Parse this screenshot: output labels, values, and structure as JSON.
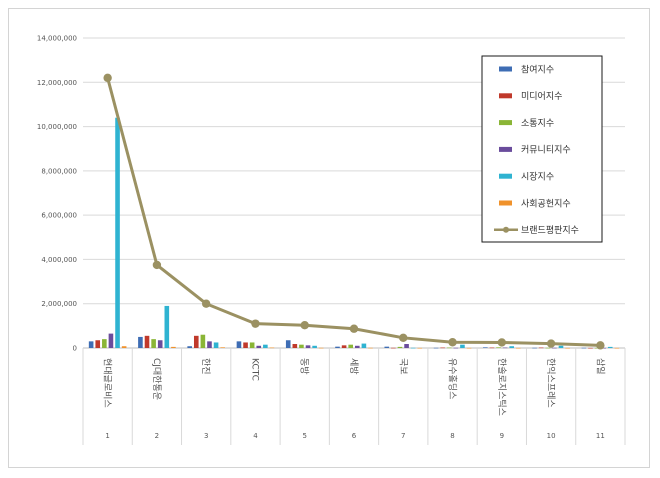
{
  "chart_data": {
    "type": "bar",
    "title": "",
    "xlabel": "",
    "ylabel": "",
    "ylim": [
      0,
      14000000
    ],
    "yticks": [
      "0",
      "2,000,000",
      "4,000,000",
      "6,000,000",
      "8,000,000",
      "10,000,000",
      "12,000,000",
      "14,000,000"
    ],
    "grid": true,
    "legend_position": "top-right",
    "categories": [
      "현대글로비스",
      "CJ대한통운",
      "한진",
      "KCTC",
      "동방",
      "세방",
      "국보",
      "유수홀딩스",
      "한솔로지스틱스",
      "한익스프레스",
      "삼일"
    ],
    "ranks": [
      "1",
      "2",
      "3",
      "4",
      "5",
      "6",
      "7",
      "8",
      "9",
      "10",
      "11"
    ],
    "series": [
      {
        "name": "참여지수",
        "type": "bar",
        "color": "#3e6db4",
        "values": [
          300000,
          500000,
          80000,
          300000,
          350000,
          60000,
          60000,
          10000,
          30000,
          10000,
          10000
        ]
      },
      {
        "name": "미디어지수",
        "type": "bar",
        "color": "#c0392b",
        "values": [
          350000,
          550000,
          550000,
          250000,
          180000,
          120000,
          10000,
          20000,
          20000,
          20000,
          5000
        ]
      },
      {
        "name": "소통지수",
        "type": "bar",
        "color": "#8ab536",
        "values": [
          400000,
          400000,
          600000,
          250000,
          150000,
          150000,
          50000,
          20000,
          30000,
          10000,
          5000
        ]
      },
      {
        "name": "커뮤니티지수",
        "type": "bar",
        "color": "#6a4c9c",
        "values": [
          650000,
          350000,
          300000,
          100000,
          120000,
          100000,
          180000,
          10000,
          20000,
          10000,
          5000
        ]
      },
      {
        "name": "시장지수",
        "type": "bar",
        "color": "#2fb3d1",
        "values": [
          10400000,
          1900000,
          250000,
          150000,
          100000,
          200000,
          10000,
          150000,
          80000,
          100000,
          50000
        ]
      },
      {
        "name": "사회공헌지수",
        "type": "bar",
        "color": "#f0922b",
        "values": [
          80000,
          50000,
          30000,
          20000,
          10000,
          10000,
          5000,
          5000,
          5000,
          5000,
          5000
        ]
      },
      {
        "name": "브랜드평판지수",
        "type": "line",
        "color": "#9b9162",
        "values": [
          12200000,
          3750000,
          2000000,
          1100000,
          1030000,
          870000,
          460000,
          260000,
          250000,
          200000,
          120000
        ]
      }
    ]
  }
}
